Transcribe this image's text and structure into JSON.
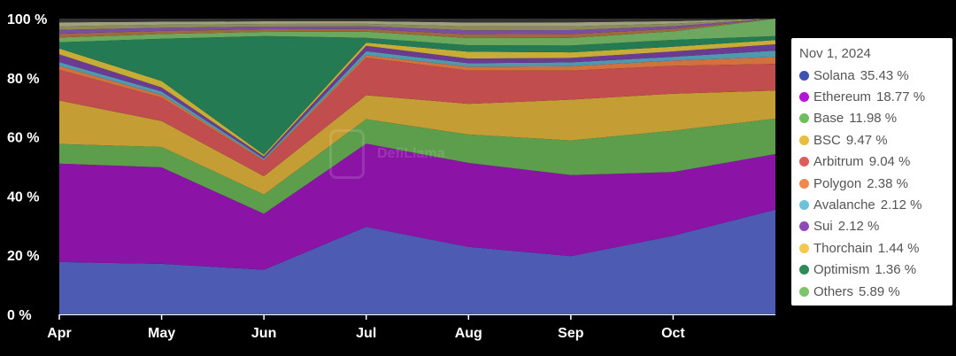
{
  "chart_data": {
    "type": "area",
    "stacked": true,
    "percent": true,
    "ylim": [
      0,
      100
    ],
    "y_ticks": [
      "0 %",
      "20 %",
      "40 %",
      "60 %",
      "80 %",
      "100 %"
    ],
    "x_tick_labels": [
      "Apr",
      "May",
      "Jun",
      "Jul",
      "Aug",
      "Sep",
      "Oct"
    ],
    "x": [
      "Apr 1, 2024",
      "May 1, 2024",
      "Jun 1, 2024",
      "Jul 1, 2024",
      "Aug 1, 2024",
      "Sep 1, 2024",
      "Oct 1, 2024",
      "Nov 1, 2024"
    ],
    "series": [
      {
        "name": "Solana",
        "color": "#4e5bb2",
        "values": [
          17.7,
          17.1,
          15.1,
          29.6,
          22.8,
          19.7,
          26.6,
          35.43
        ]
      },
      {
        "name": "Ethereum",
        "color": "#8b14a6",
        "values": [
          33.3,
          32.6,
          18.9,
          28.1,
          28.4,
          27.4,
          21.5,
          18.77
        ]
      },
      {
        "name": "Base",
        "color": "#5c9e4c",
        "values": [
          6.6,
          6.9,
          6.5,
          8.3,
          9.6,
          11.7,
          14.0,
          11.98
        ]
      },
      {
        "name": "BSC",
        "color": "#c49e35",
        "values": [
          14.7,
          8.8,
          6.2,
          8.1,
          10.4,
          13.8,
          12.5,
          9.47
        ]
      },
      {
        "name": "Arbitrum",
        "color": "#c14d4e",
        "values": [
          10.4,
          7.9,
          5.2,
          12.7,
          11.2,
          9.8,
          9.4,
          9.04
        ]
      },
      {
        "name": "Polygon",
        "color": "#d2713e",
        "values": [
          1.3,
          0.9,
          0.3,
          0.8,
          1.3,
          1.5,
          1.8,
          2.38
        ]
      },
      {
        "name": "Avalanche",
        "color": "#4f99ae",
        "values": [
          1.3,
          1.2,
          0.5,
          1.4,
          1.2,
          1.3,
          1.3,
          2.12
        ]
      },
      {
        "name": "Sui",
        "color": "#6b3b93",
        "values": [
          2.6,
          1.3,
          0.7,
          1.8,
          1.6,
          1.5,
          1.8,
          2.12
        ]
      },
      {
        "name": "Thorchain",
        "color": "#c7ad35",
        "values": [
          2.0,
          2.2,
          0.6,
          1.1,
          2.3,
          1.9,
          1.6,
          1.44
        ]
      },
      {
        "name": "Optimism",
        "color": "#247a52",
        "values": [
          2.1,
          14.3,
          40.1,
          1.6,
          2.2,
          2.3,
          2.3,
          1.36
        ]
      },
      {
        "name": "Others",
        "color": "#6ca95f",
        "values": [
          1.6,
          1.6,
          1.4,
          2.1,
          2.4,
          2.6,
          2.9,
          5.89
        ]
      }
    ],
    "extra_thin_layers_colors": [
      "#9c6a3c",
      "#7a4fa0",
      "#8a8a5a",
      "#a0a07c",
      "#333333"
    ],
    "grid": false,
    "legend": "tooltip right"
  },
  "tooltip": {
    "date": "Nov 1, 2024",
    "rows": [
      {
        "name": "Solana",
        "value": "35.43 %",
        "color": "#3d52b1"
      },
      {
        "name": "Ethereum",
        "value": "18.77 %",
        "color": "#b514d6"
      },
      {
        "name": "Base",
        "value": "11.98 %",
        "color": "#6dbf5c"
      },
      {
        "name": "BSC",
        "value": "9.47 %",
        "color": "#e8bc3c"
      },
      {
        "name": "Arbitrum",
        "value": "9.04 %",
        "color": "#e05b5b"
      },
      {
        "name": "Polygon",
        "value": "2.38 %",
        "color": "#f08a4b"
      },
      {
        "name": "Avalanche",
        "value": "2.12 %",
        "color": "#6cc3d5"
      },
      {
        "name": "Sui",
        "value": "2.12 %",
        "color": "#8e4bb8"
      },
      {
        "name": "Thorchain",
        "value": "1.44 %",
        "color": "#f2c94c"
      },
      {
        "name": "Optimism",
        "value": "1.36 %",
        "color": "#2e8b57"
      },
      {
        "name": "Others",
        "value": "5.89 %",
        "color": "#7cc36a"
      }
    ]
  },
  "watermark": {
    "text": "DefiLlama"
  }
}
